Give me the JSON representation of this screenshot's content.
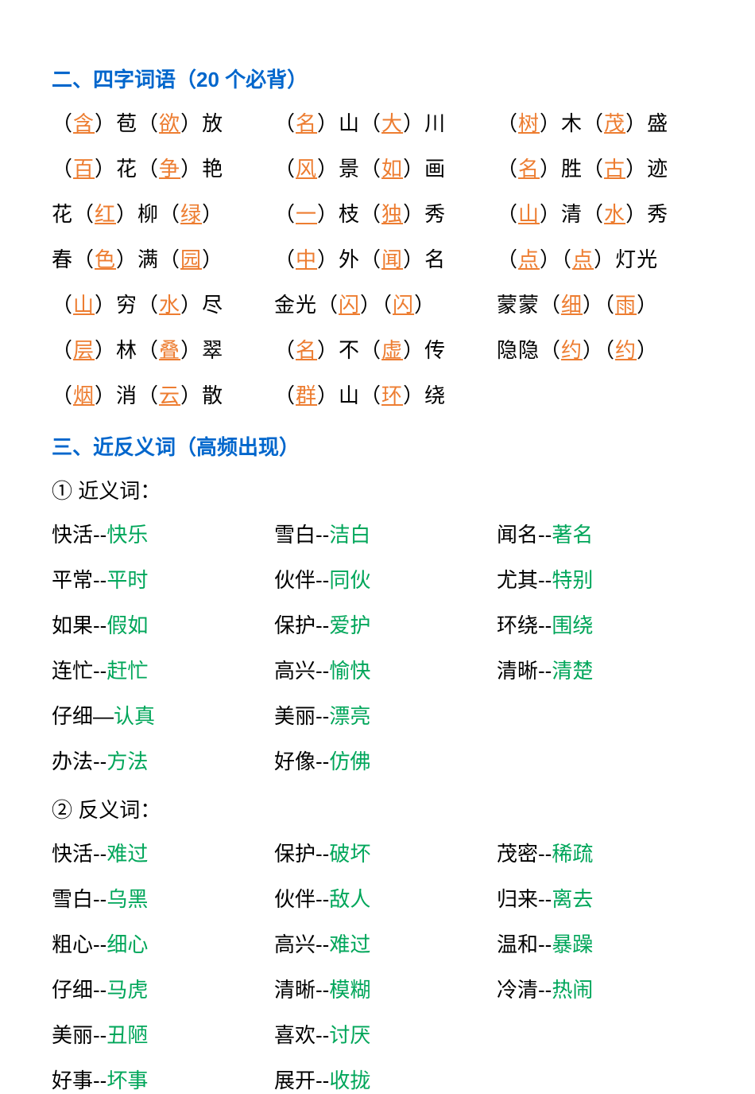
{
  "colors": {
    "heading": "#0066cc",
    "orange": "#ed7d31",
    "green": "#00a65a",
    "black": "#000000",
    "bg": "#ffffff"
  },
  "typography": {
    "heading_size": 26,
    "body_size": 26,
    "weight_heading": "bold",
    "weight_body": "normal"
  },
  "section2": {
    "title": "二、四字词语（20 个必背）",
    "items": [
      [
        {
          "parts": [
            {
              "t": "（",
              "k": "p"
            },
            {
              "t": "含",
              "k": "fill"
            },
            {
              "t": "）苞（",
              "k": "p"
            },
            {
              "t": "欲",
              "k": "fill"
            },
            {
              "t": "）放",
              "k": "p"
            }
          ]
        },
        {
          "parts": [
            {
              "t": "（",
              "k": "p"
            },
            {
              "t": "名",
              "k": "fill"
            },
            {
              "t": "）山（",
              "k": "p"
            },
            {
              "t": "大",
              "k": "fill"
            },
            {
              "t": "）川",
              "k": "p"
            }
          ]
        },
        {
          "parts": [
            {
              "t": "（",
              "k": "p"
            },
            {
              "t": "树",
              "k": "fill"
            },
            {
              "t": "）木（",
              "k": "p"
            },
            {
              "t": "茂",
              "k": "fill"
            },
            {
              "t": "）盛",
              "k": "p"
            }
          ]
        }
      ],
      [
        {
          "parts": [
            {
              "t": "（",
              "k": "p"
            },
            {
              "t": "百",
              "k": "fill"
            },
            {
              "t": "）花（",
              "k": "p"
            },
            {
              "t": "争",
              "k": "fill"
            },
            {
              "t": "）艳",
              "k": "p"
            }
          ]
        },
        {
          "parts": [
            {
              "t": "（",
              "k": "p"
            },
            {
              "t": "风",
              "k": "fill"
            },
            {
              "t": "）景（",
              "k": "p"
            },
            {
              "t": "如",
              "k": "fill"
            },
            {
              "t": "）画",
              "k": "p"
            }
          ]
        },
        {
          "parts": [
            {
              "t": "（",
              "k": "p"
            },
            {
              "t": "名",
              "k": "fill"
            },
            {
              "t": "）胜（",
              "k": "p"
            },
            {
              "t": "古",
              "k": "fill"
            },
            {
              "t": "）迹",
              "k": "p"
            }
          ]
        }
      ],
      [
        {
          "parts": [
            {
              "t": "花（",
              "k": "p"
            },
            {
              "t": "红",
              "k": "fill"
            },
            {
              "t": "）柳（",
              "k": "p"
            },
            {
              "t": "绿",
              "k": "fill"
            },
            {
              "t": "）",
              "k": "p"
            }
          ]
        },
        {
          "parts": [
            {
              "t": "（",
              "k": "p"
            },
            {
              "t": "一",
              "k": "fill"
            },
            {
              "t": "）枝（",
              "k": "p"
            },
            {
              "t": "独",
              "k": "fill"
            },
            {
              "t": "）秀",
              "k": "p"
            }
          ]
        },
        {
          "parts": [
            {
              "t": "（",
              "k": "p"
            },
            {
              "t": "山",
              "k": "fill"
            },
            {
              "t": "）清（",
              "k": "p"
            },
            {
              "t": "水",
              "k": "fill"
            },
            {
              "t": "）秀",
              "k": "p"
            }
          ]
        }
      ],
      [
        {
          "parts": [
            {
              "t": "春（",
              "k": "p"
            },
            {
              "t": "色",
              "k": "fill"
            },
            {
              "t": "）满（",
              "k": "p"
            },
            {
              "t": "园",
              "k": "fill"
            },
            {
              "t": "）",
              "k": "p"
            }
          ]
        },
        {
          "parts": [
            {
              "t": "（",
              "k": "p"
            },
            {
              "t": "中",
              "k": "fill"
            },
            {
              "t": "）外（",
              "k": "p"
            },
            {
              "t": "闻",
              "k": "fill"
            },
            {
              "t": "）名",
              "k": "p"
            }
          ]
        },
        {
          "parts": [
            {
              "t": "（",
              "k": "p"
            },
            {
              "t": "点",
              "k": "fill"
            },
            {
              "t": "）（",
              "k": "p"
            },
            {
              "t": "点",
              "k": "fill"
            },
            {
              "t": "）灯光",
              "k": "p"
            }
          ]
        }
      ],
      [
        {
          "parts": [
            {
              "t": "（",
              "k": "p"
            },
            {
              "t": "山",
              "k": "fill"
            },
            {
              "t": "）穷（",
              "k": "p"
            },
            {
              "t": "水",
              "k": "fill"
            },
            {
              "t": "）尽",
              "k": "p"
            }
          ]
        },
        {
          "parts": [
            {
              "t": "金光（",
              "k": "p"
            },
            {
              "t": "闪",
              "k": "fill"
            },
            {
              "t": "）（",
              "k": "p"
            },
            {
              "t": "闪",
              "k": "fill"
            },
            {
              "t": "）",
              "k": "p"
            }
          ]
        },
        {
          "parts": [
            {
              "t": "蒙蒙（",
              "k": "p"
            },
            {
              "t": "细",
              "k": "fill"
            },
            {
              "t": "）（",
              "k": "p"
            },
            {
              "t": "雨",
              "k": "fill"
            },
            {
              "t": "）",
              "k": "p"
            }
          ]
        }
      ],
      [
        {
          "parts": [
            {
              "t": "（",
              "k": "p"
            },
            {
              "t": "层",
              "k": "fill"
            },
            {
              "t": "）林（",
              "k": "p"
            },
            {
              "t": "叠",
              "k": "fill"
            },
            {
              "t": "）翠",
              "k": "p"
            }
          ]
        },
        {
          "parts": [
            {
              "t": "（",
              "k": "p"
            },
            {
              "t": "名",
              "k": "fill"
            },
            {
              "t": "）不（",
              "k": "p"
            },
            {
              "t": "虚",
              "k": "fill"
            },
            {
              "t": "）传",
              "k": "p"
            }
          ]
        },
        {
          "parts": [
            {
              "t": "隐隐（",
              "k": "p"
            },
            {
              "t": "约",
              "k": "fill"
            },
            {
              "t": "）（",
              "k": "p"
            },
            {
              "t": "约",
              "k": "fill"
            },
            {
              "t": "）",
              "k": "p"
            }
          ]
        }
      ],
      [
        {
          "parts": [
            {
              "t": "（",
              "k": "p"
            },
            {
              "t": "烟",
              "k": "fill"
            },
            {
              "t": "）消（",
              "k": "p"
            },
            {
              "t": "云",
              "k": "fill"
            },
            {
              "t": "）散",
              "k": "p"
            }
          ]
        },
        {
          "parts": [
            {
              "t": "（",
              "k": "p"
            },
            {
              "t": "群",
              "k": "fill"
            },
            {
              "t": "）山（",
              "k": "p"
            },
            {
              "t": "环",
              "k": "fill"
            },
            {
              "t": "）绕",
              "k": "p"
            }
          ]
        },
        null
      ]
    ]
  },
  "section3": {
    "title": "三、近反义词（高频出现）",
    "syn_label": "① 近义词：",
    "ant_label": "② 反义词：",
    "synonyms": [
      [
        {
          "base": "快活",
          "sep": "--",
          "ans": "快乐"
        },
        {
          "base": "雪白",
          "sep": "--",
          "ans": "洁白"
        },
        {
          "base": "闻名",
          "sep": "--",
          "ans": "著名"
        }
      ],
      [
        {
          "base": "平常",
          "sep": "--",
          "ans": "平时"
        },
        {
          "base": "伙伴",
          "sep": "--",
          "ans": "同伙"
        },
        {
          "base": "尤其",
          "sep": "--",
          "ans": "特别"
        }
      ],
      [
        {
          "base": "如果",
          "sep": "--",
          "ans": "假如"
        },
        {
          "base": "保护",
          "sep": "--",
          "ans": "爱护"
        },
        {
          "base": "环绕",
          "sep": "--",
          "ans": "围绕"
        }
      ],
      [
        {
          "base": "连忙",
          "sep": "--",
          "ans": "赶忙"
        },
        {
          "base": "高兴",
          "sep": "--",
          "ans": "愉快"
        },
        {
          "base": "清晰",
          "sep": "--",
          "ans": "清楚"
        }
      ],
      [
        {
          "base": "仔细",
          "sep": "—",
          "ans": "认真"
        },
        {
          "base": "美丽",
          "sep": "--",
          "ans": "漂亮"
        },
        null
      ],
      [
        {
          "base": "办法",
          "sep": "--",
          "ans": "方法"
        },
        {
          "base": "好像",
          "sep": "--",
          "ans": "仿佛"
        },
        null
      ]
    ],
    "antonyms": [
      [
        {
          "base": "快活",
          "sep": "--",
          "ans": "难过"
        },
        {
          "base": "保护",
          "sep": "--",
          "ans": "破坏"
        },
        {
          "base": "茂密",
          "sep": "--",
          "ans": "稀疏"
        }
      ],
      [
        {
          "base": "雪白",
          "sep": "--",
          "ans": "乌黑"
        },
        {
          "base": "伙伴",
          "sep": "--",
          "ans": "敌人"
        },
        {
          "base": "归来",
          "sep": "--",
          "ans": "离去"
        }
      ],
      [
        {
          "base": "粗心",
          "sep": "--",
          "ans": "细心"
        },
        {
          "base": "高兴",
          "sep": "--",
          "ans": "难过"
        },
        {
          "base": "温和",
          "sep": "--",
          "ans": "暴躁"
        }
      ],
      [
        {
          "base": "仔细",
          "sep": "--",
          "ans": "马虎"
        },
        {
          "base": "清晰",
          "sep": "--",
          "ans": "模糊"
        },
        {
          "base": "冷清",
          "sep": "--",
          "ans": "热闹"
        }
      ],
      [
        {
          "base": "美丽",
          "sep": "--",
          "ans": "丑陋"
        },
        {
          "base": "喜欢",
          "sep": "--",
          "ans": "讨厌"
        },
        null
      ],
      [
        {
          "base": "好事",
          "sep": "--",
          "ans": "坏事"
        },
        {
          "base": "展开",
          "sep": "--",
          "ans": "收拢"
        },
        null
      ]
    ]
  }
}
